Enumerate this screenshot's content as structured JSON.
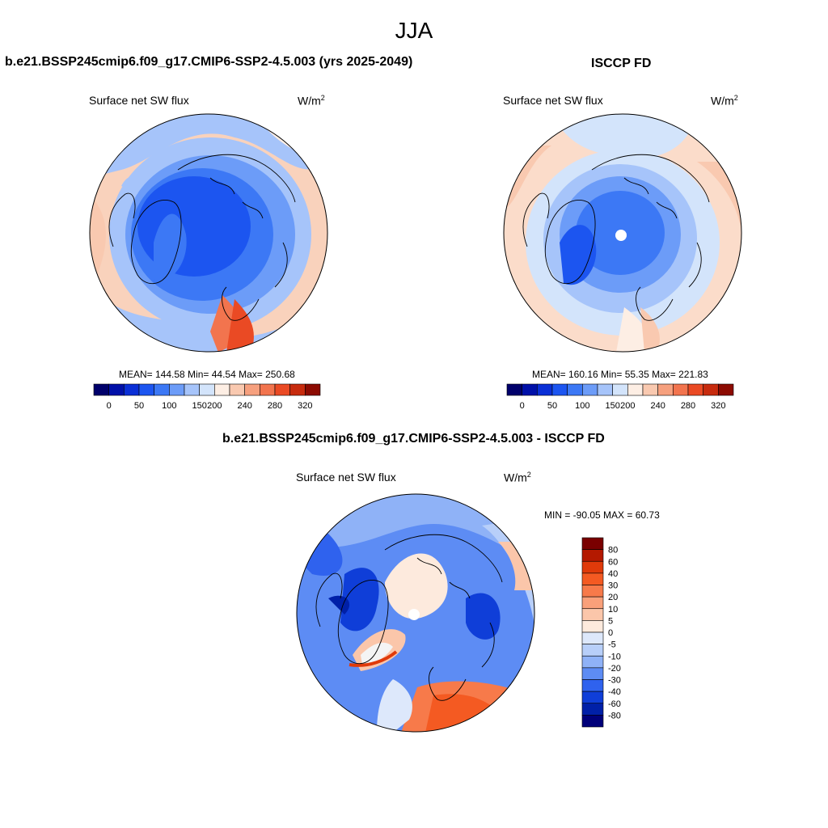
{
  "season": "JJA",
  "units": {
    "base": "W/m",
    "exp": "2"
  },
  "variable": "Surface net SW flux",
  "panels": {
    "model": {
      "title": "b.e21.BSSP245cmip6.f09_g17.CMIP6-SSP2-4.5.003 (yrs 2025-2049)",
      "stats": "MEAN= 144.58  Min=  44.54  Max= 250.68"
    },
    "obs": {
      "title": "ISCCP FD",
      "stats": "MEAN= 160.16  Min=  55.35  Max= 221.83"
    },
    "diff": {
      "title": "b.e21.BSSP245cmip6.f09_g17.CMIP6-SSP2-4.5.003 - ISCCP FD",
      "stats": "MIN = -90.05 MAX =  60.73"
    }
  },
  "colorbar_main": {
    "tick_labels": [
      "0",
      "50",
      "100",
      "150",
      "200",
      "240",
      "280",
      "320"
    ],
    "colors": [
      "#00006b",
      "#0010a8",
      "#0a2fd6",
      "#1c55f0",
      "#3c78f5",
      "#6c9cf8",
      "#a6c4fa",
      "#d3e4fb",
      "#fdeee4",
      "#f9c9b0",
      "#f6a07e",
      "#f2744e",
      "#ea4a24",
      "#c72b0e",
      "#8c0b02"
    ]
  },
  "colorbar_diff": {
    "tick_labels": [
      "80",
      "60",
      "40",
      "30",
      "20",
      "10",
      "5",
      "0",
      "-5",
      "-10",
      "-20",
      "-30",
      "-40",
      "-60",
      "-80"
    ],
    "colors": [
      "#7a0000",
      "#b41900",
      "#e03a0a",
      "#f45a22",
      "#f77a4a",
      "#f9a07a",
      "#fbc6aa",
      "#fdeadd",
      "#dde8fb",
      "#b8cff9",
      "#8fb2f7",
      "#5d8cf4",
      "#2f62ee",
      "#0f3ed8",
      "#0020a8",
      "#00007a"
    ]
  }
}
